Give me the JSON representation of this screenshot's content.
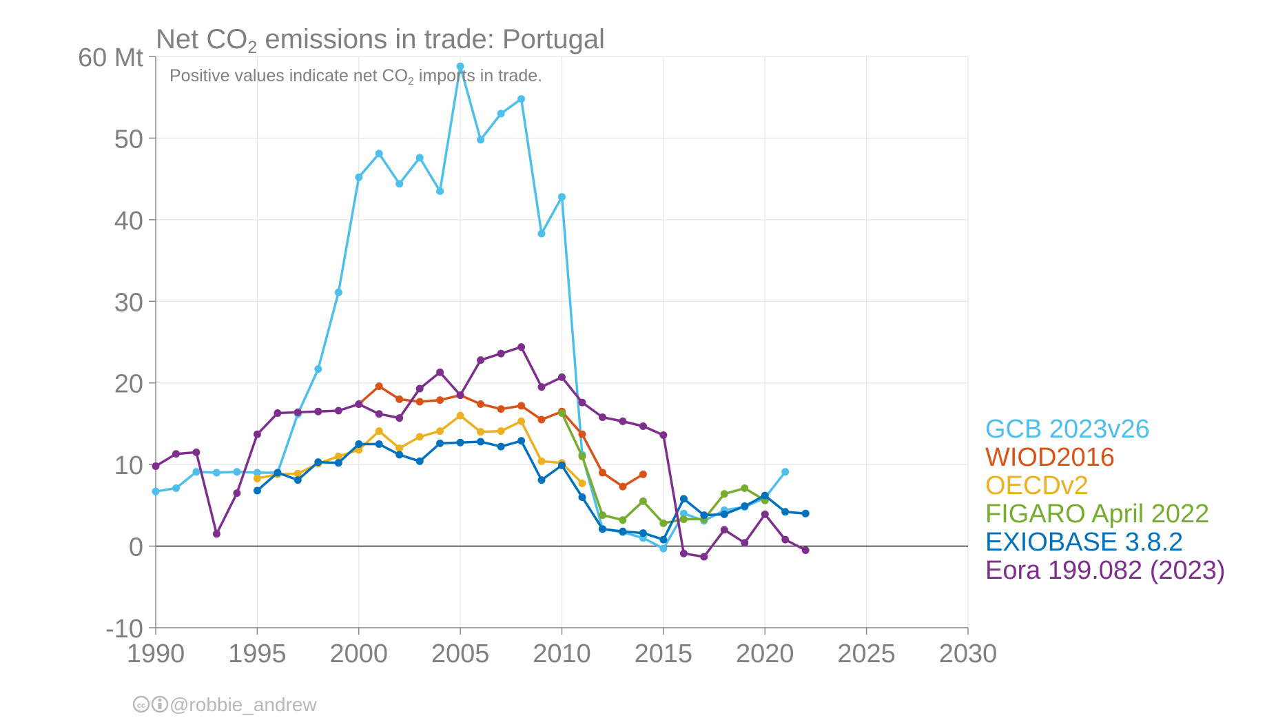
{
  "chart_data": {
    "type": "line",
    "title": "Net CO₂ emissions in trade: Portugal",
    "subtitle": "Positive values indicate net CO₂ imports in trade.",
    "y_unit": "Mt",
    "xlim": [
      1990,
      2030
    ],
    "ylim": [
      -10,
      60
    ],
    "x_ticks": [
      1990,
      1995,
      2000,
      2005,
      2010,
      2015,
      2020,
      2025,
      2030
    ],
    "y_ticks": [
      -10,
      0,
      10,
      20,
      30,
      40,
      50,
      60
    ],
    "grid": true,
    "legend_position": "right",
    "series": [
      {
        "name": "GCB 2023v26",
        "color": "#4DBFEA",
        "points": [
          [
            1990,
            6.7
          ],
          [
            1991,
            7.1
          ],
          [
            1992,
            9.1
          ],
          [
            1993,
            9.0
          ],
          [
            1994,
            9.1
          ],
          [
            1995,
            9.0
          ],
          [
            1996,
            9.0
          ],
          [
            1997,
            16.2
          ],
          [
            1998,
            21.7
          ],
          [
            1999,
            31.1
          ],
          [
            2000,
            45.2
          ],
          [
            2001,
            48.1
          ],
          [
            2002,
            44.4
          ],
          [
            2003,
            47.6
          ],
          [
            2004,
            43.5
          ],
          [
            2005,
            58.8
          ],
          [
            2006,
            49.8
          ],
          [
            2007,
            53.0
          ],
          [
            2008,
            54.8
          ],
          [
            2009,
            38.3
          ],
          [
            2010,
            42.8
          ],
          [
            2011,
            11.2
          ],
          [
            2012,
            2.1
          ],
          [
            2013,
            1.7
          ],
          [
            2014,
            1.0
          ],
          [
            2015,
            -0.3
          ],
          [
            2016,
            4.0
          ],
          [
            2017,
            3.1
          ],
          [
            2018,
            4.4
          ],
          [
            2019,
            4.8
          ],
          [
            2020,
            5.9
          ],
          [
            2021,
            9.1
          ]
        ]
      },
      {
        "name": "WIOD2016",
        "color": "#D95319",
        "points": [
          [
            2000,
            17.4
          ],
          [
            2001,
            19.6
          ],
          [
            2002,
            18.0
          ],
          [
            2003,
            17.7
          ],
          [
            2004,
            17.9
          ],
          [
            2005,
            18.5
          ],
          [
            2006,
            17.4
          ],
          [
            2007,
            16.8
          ],
          [
            2008,
            17.2
          ],
          [
            2009,
            15.5
          ],
          [
            2010,
            16.5
          ],
          [
            2011,
            13.7
          ],
          [
            2012,
            9.0
          ],
          [
            2013,
            7.3
          ],
          [
            2014,
            8.8
          ]
        ]
      },
      {
        "name": "OECDv2",
        "color": "#EDB120",
        "points": [
          [
            1995,
            8.3
          ],
          [
            1996,
            8.8
          ],
          [
            1997,
            8.9
          ],
          [
            1998,
            10.1
          ],
          [
            1999,
            11.0
          ],
          [
            2000,
            11.8
          ],
          [
            2001,
            14.1
          ],
          [
            2002,
            12.0
          ],
          [
            2003,
            13.4
          ],
          [
            2004,
            14.1
          ],
          [
            2005,
            16.0
          ],
          [
            2006,
            14.0
          ],
          [
            2007,
            14.1
          ],
          [
            2008,
            15.3
          ],
          [
            2009,
            10.4
          ],
          [
            2010,
            10.2
          ],
          [
            2011,
            7.7
          ]
        ]
      },
      {
        "name": "FIGARO April 2022",
        "color": "#77AC30",
        "points": [
          [
            2010,
            16.3
          ],
          [
            2011,
            11.0
          ],
          [
            2012,
            3.8
          ],
          [
            2013,
            3.2
          ],
          [
            2014,
            5.5
          ],
          [
            2015,
            2.8
          ],
          [
            2016,
            3.3
          ],
          [
            2017,
            3.3
          ],
          [
            2018,
            6.4
          ],
          [
            2019,
            7.1
          ],
          [
            2020,
            5.6
          ]
        ]
      },
      {
        "name": "EXIOBASE 3.8.2",
        "color": "#0072BD",
        "points": [
          [
            1995,
            6.8
          ],
          [
            1996,
            9.0
          ],
          [
            1997,
            8.1
          ],
          [
            1998,
            10.3
          ],
          [
            1999,
            10.2
          ],
          [
            2000,
            12.5
          ],
          [
            2001,
            12.5
          ],
          [
            2002,
            11.2
          ],
          [
            2003,
            10.4
          ],
          [
            2004,
            12.6
          ],
          [
            2005,
            12.7
          ],
          [
            2006,
            12.8
          ],
          [
            2007,
            12.2
          ],
          [
            2008,
            12.9
          ],
          [
            2009,
            8.1
          ],
          [
            2010,
            9.9
          ],
          [
            2011,
            6.0
          ],
          [
            2012,
            2.1
          ],
          [
            2013,
            1.8
          ],
          [
            2014,
            1.6
          ],
          [
            2015,
            0.8
          ],
          [
            2016,
            5.8
          ],
          [
            2017,
            3.8
          ],
          [
            2018,
            3.9
          ],
          [
            2019,
            4.9
          ],
          [
            2020,
            6.2
          ],
          [
            2021,
            4.2
          ],
          [
            2022,
            4.0
          ]
        ]
      },
      {
        "name": "Eora 199.082 (2023)",
        "color": "#7E2F8E",
        "points": [
          [
            1990,
            9.8
          ],
          [
            1991,
            11.3
          ],
          [
            1992,
            11.5
          ],
          [
            1993,
            1.5
          ],
          [
            1994,
            6.5
          ],
          [
            1995,
            13.7
          ],
          [
            1996,
            16.3
          ],
          [
            1997,
            16.4
          ],
          [
            1998,
            16.5
          ],
          [
            1999,
            16.6
          ],
          [
            2000,
            17.4
          ],
          [
            2001,
            16.2
          ],
          [
            2002,
            15.7
          ],
          [
            2003,
            19.3
          ],
          [
            2004,
            21.3
          ],
          [
            2005,
            18.5
          ],
          [
            2006,
            22.8
          ],
          [
            2007,
            23.6
          ],
          [
            2008,
            24.4
          ],
          [
            2009,
            19.5
          ],
          [
            2010,
            20.7
          ],
          [
            2011,
            17.6
          ],
          [
            2012,
            15.8
          ],
          [
            2013,
            15.3
          ],
          [
            2014,
            14.7
          ],
          [
            2015,
            13.6
          ],
          [
            2016,
            -0.9
          ],
          [
            2017,
            -1.3
          ],
          [
            2018,
            2.0
          ],
          [
            2019,
            0.4
          ],
          [
            2020,
            3.9
          ],
          [
            2021,
            0.8
          ],
          [
            2022,
            -0.5
          ]
        ]
      }
    ]
  },
  "credit": "@robbie_andrew"
}
